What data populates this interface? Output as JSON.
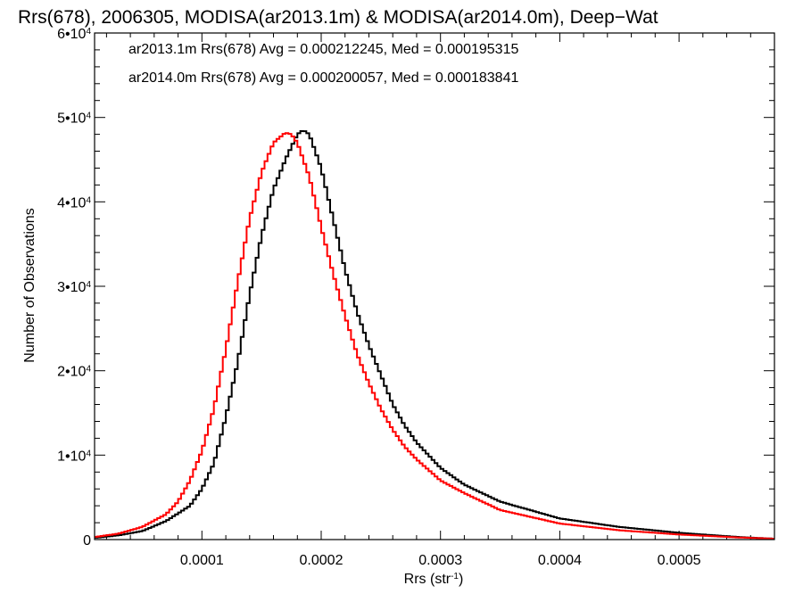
{
  "chart_data": {
    "type": "line",
    "title": "Rrs(678), 2006305, MODISA(ar2013.1m) & MODISA(ar2014.0m), Deep−Wat",
    "xlabel": "Rrs (str",
    "xlabel_sup": "-1",
    "xlabel_suffix": ")",
    "ylabel": "Number of Observations",
    "xlim": [
      1e-05,
      0.00058
    ],
    "ylim": [
      0,
      60000
    ],
    "x_ticks": [
      0.0001,
      0.0002,
      0.0003,
      0.0004,
      0.0005
    ],
    "x_tick_labels": [
      "0.0001",
      "0.0002",
      "0.0003",
      "0.0004",
      "0.0005"
    ],
    "y_ticks": [
      0,
      10000,
      20000,
      30000,
      40000,
      50000,
      60000
    ],
    "y_tick_labels": [
      {
        "base": "0",
        "exp": ""
      },
      {
        "base": "1•10",
        "exp": "4"
      },
      {
        "base": "2•10",
        "exp": "4"
      },
      {
        "base": "3•10",
        "exp": "4"
      },
      {
        "base": "4•10",
        "exp": "4"
      },
      {
        "base": "5•10",
        "exp": "4"
      },
      {
        "base": "6•10",
        "exp": "4"
      }
    ],
    "grid": false,
    "legend_position": "top-left",
    "series": [
      {
        "name": "ar2013.1m",
        "color": "#000000",
        "annotation": "ar2013.1m Rrs(678) Avg = 0.000212245, Med = 0.000195315",
        "x": [
          1e-05,
          3e-05,
          5e-05,
          7e-05,
          9e-05,
          0.0001,
          0.00011,
          0.00012,
          0.00013,
          0.00014,
          0.00015,
          0.00016,
          0.00017,
          0.00018,
          0.000185,
          0.00019,
          0.0002,
          0.00021,
          0.00022,
          0.00023,
          0.00024,
          0.00025,
          0.00026,
          0.00027,
          0.00028,
          0.0003,
          0.00032,
          0.00035,
          0.0004,
          0.00045,
          0.0005,
          0.00055,
          0.00058
        ],
        "y": [
          200,
          500,
          1000,
          2200,
          4000,
          6000,
          9000,
          14500,
          21000,
          29000,
          36000,
          41500,
          45000,
          48000,
          48500,
          48000,
          44000,
          38000,
          32000,
          27000,
          23000,
          19500,
          16000,
          13500,
          11500,
          8500,
          6500,
          4500,
          2500,
          1500,
          800,
          300,
          100
        ]
      },
      {
        "name": "ar2014.0m",
        "color": "#ff0000",
        "annotation": "ar2014.0m Rrs(678) Avg = 0.000200057, Med = 0.000183841",
        "x": [
          1e-05,
          3e-05,
          5e-05,
          7e-05,
          8e-05,
          9e-05,
          0.0001,
          0.00011,
          0.00012,
          0.00013,
          0.00014,
          0.00015,
          0.00016,
          0.00017,
          0.000175,
          0.00018,
          0.00019,
          0.0002,
          0.00021,
          0.00022,
          0.00023,
          0.00024,
          0.00025,
          0.00026,
          0.00027,
          0.00028,
          0.0003,
          0.00032,
          0.00035,
          0.0004,
          0.00045,
          0.0005,
          0.00055,
          0.00058
        ],
        "y": [
          300,
          700,
          1500,
          3000,
          4500,
          7000,
          10500,
          15500,
          22500,
          30500,
          38000,
          43500,
          47000,
          48200,
          48000,
          47000,
          43000,
          37000,
          31500,
          26500,
          22000,
          18500,
          15500,
          13000,
          11000,
          9500,
          7000,
          5500,
          3500,
          1900,
          1100,
          600,
          250,
          100
        ]
      }
    ]
  }
}
